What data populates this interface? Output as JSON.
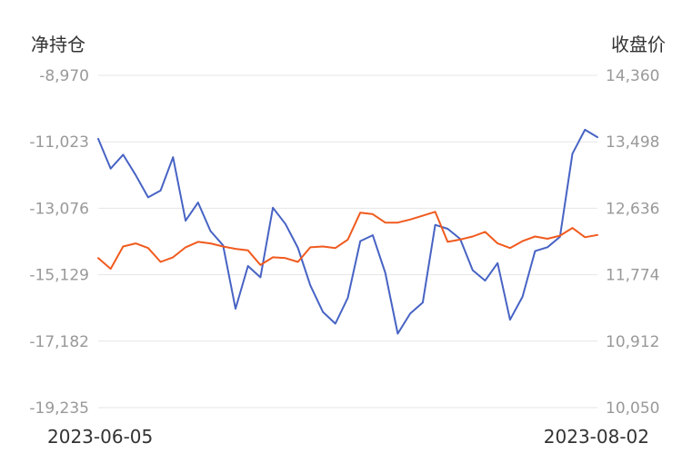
{
  "chart_data": {
    "type": "line",
    "left_axis": {
      "title": "净持仓",
      "ticks": [
        "-8,970",
        "-11,023",
        "-13,076",
        "-15,129",
        "-17,182",
        "-19,235"
      ],
      "range": [
        -19235,
        -8970
      ]
    },
    "right_axis": {
      "title": "收盘价",
      "ticks": [
        "14,360",
        "13,498",
        "12,636",
        "11,774",
        "10,912",
        "10,050"
      ],
      "range": [
        10050,
        14360
      ]
    },
    "x_labels": {
      "start": "2023-06-05",
      "end": "2023-08-02"
    },
    "grid": true,
    "series": [
      {
        "axis": "left",
        "color": "#4763c4",
        "values": [
          -10930,
          -11850,
          -11420,
          -12050,
          -12740,
          -12530,
          -11500,
          -13460,
          -12900,
          -13780,
          -14220,
          -16180,
          -14860,
          -15210,
          -13060,
          -13560,
          -14300,
          -15460,
          -16280,
          -16640,
          -15840,
          -14090,
          -13910,
          -15070,
          -16950,
          -16330,
          -15990,
          -13590,
          -13710,
          -14020,
          -14990,
          -15310,
          -14770,
          -16520,
          -15810,
          -14400,
          -14280,
          -13960,
          -11390,
          -10650,
          -10880
        ]
      },
      {
        "axis": "right",
        "color": "#f05a1e",
        "values": [
          11990,
          11850,
          12140,
          12180,
          12120,
          11940,
          12000,
          12130,
          12200,
          12180,
          12140,
          12110,
          12090,
          11900,
          12000,
          11990,
          11940,
          12130,
          12140,
          12120,
          12230,
          12580,
          12560,
          12450,
          12450,
          12490,
          12540,
          12590,
          12200,
          12230,
          12270,
          12330,
          12180,
          12120,
          12210,
          12270,
          12240,
          12280,
          12380,
          12260,
          12290
        ]
      }
    ]
  }
}
